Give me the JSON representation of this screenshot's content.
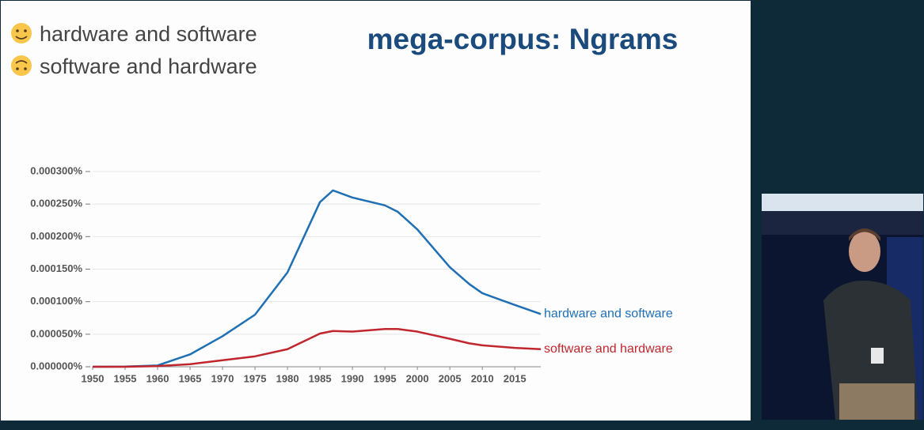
{
  "slide": {
    "title": "mega-corpus: Ngrams",
    "lines": [
      "hardware and software",
      "software and hardware"
    ]
  },
  "chart_data": {
    "type": "line",
    "x": [
      1950,
      1955,
      1960,
      1965,
      1970,
      1975,
      1980,
      1985,
      1987,
      1990,
      1995,
      1997,
      2000,
      2005,
      2008,
      2010,
      2015,
      2019
    ],
    "series": [
      {
        "name": "hardware and software",
        "color": "#1f6fb4",
        "values": [
          0,
          3e-07,
          2e-06,
          1.9e-05,
          4.7e-05,
          8e-05,
          0.000145,
          0.000253,
          0.000271,
          0.00026,
          0.000248,
          0.000238,
          0.000211,
          0.000153,
          0.000127,
          0.000113,
          9.5e-05,
          8.1e-05
        ]
      },
      {
        "name": "software and hardware",
        "color": "#c0262d",
        "values": [
          0,
          0,
          1e-06,
          4e-06,
          1e-05,
          1.6e-05,
          2.7e-05,
          5.1e-05,
          5.5e-05,
          5.4e-05,
          5.8e-05,
          5.8e-05,
          5.4e-05,
          4.3e-05,
          3.6e-05,
          3.3e-05,
          2.9e-05,
          2.7e-05
        ]
      }
    ],
    "xlim": [
      1950,
      2019
    ],
    "xticks": [
      1950,
      1955,
      1960,
      1965,
      1970,
      1975,
      1980,
      1985,
      1990,
      1995,
      2000,
      2005,
      2010,
      2015
    ],
    "ylim": [
      0,
      0.0003
    ],
    "yticks": [
      {
        "value": 0,
        "label": "0.000000%"
      },
      {
        "value": 5e-05,
        "label": "0.000050%"
      },
      {
        "value": 0.0001,
        "label": "0.000100%"
      },
      {
        "value": 0.00015,
        "label": "0.000150%"
      },
      {
        "value": 0.0002,
        "label": "0.000200%"
      },
      {
        "value": 0.00025,
        "label": "0.000250%"
      },
      {
        "value": 0.0003,
        "label": "0.000300%"
      }
    ],
    "grid": true
  }
}
